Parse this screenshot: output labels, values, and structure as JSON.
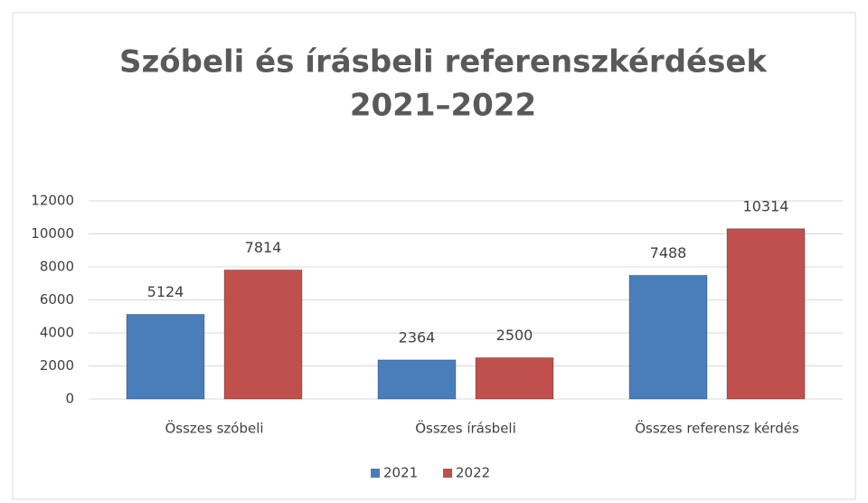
{
  "chart_data": {
    "type": "bar",
    "title": [
      "Szóbeli és írásbeli referenszkérdések",
      "2021–2022"
    ],
    "categories": [
      "Összes szóbeli",
      "Összes írásbeli",
      "Összes referensz kérdés"
    ],
    "series": [
      {
        "name": "2021",
        "color": "#4a7ebb",
        "values": [
          5124,
          2364,
          7488
        ]
      },
      {
        "name": "2022",
        "color": "#c0504d",
        "values": [
          7814,
          2500,
          10314
        ]
      }
    ],
    "ylim": [
      0,
      12000
    ],
    "yticks": [
      0,
      2000,
      4000,
      6000,
      8000,
      10000,
      12000
    ],
    "grid": true,
    "legend": "bottom"
  }
}
